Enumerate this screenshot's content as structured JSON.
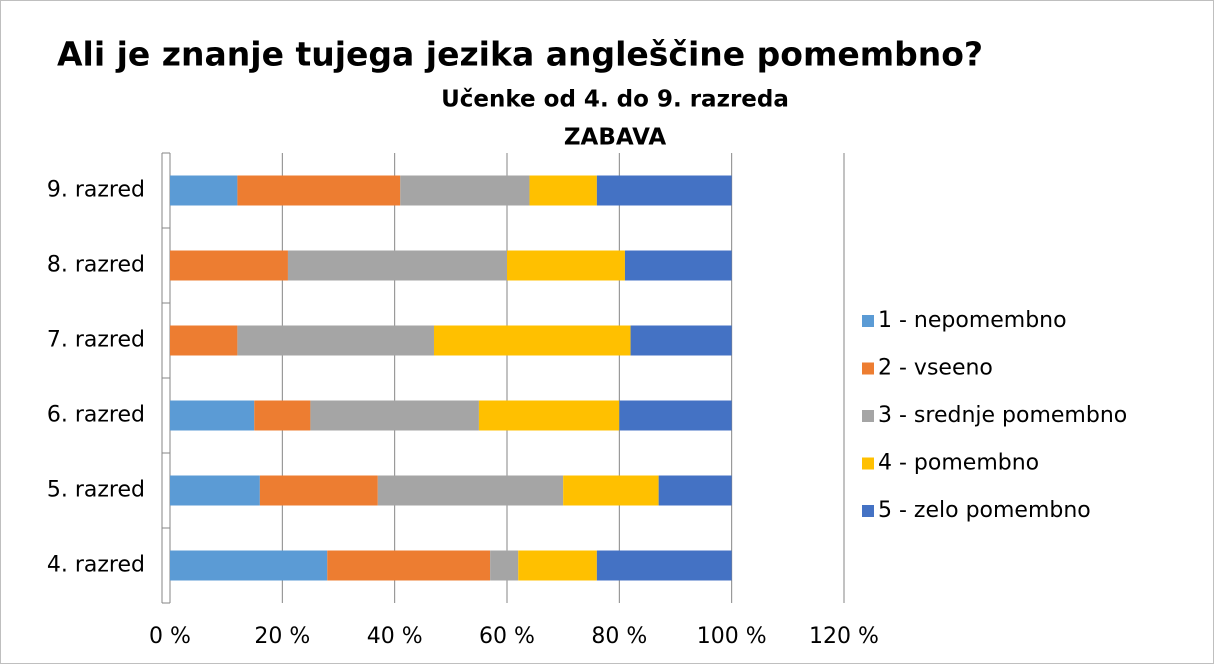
{
  "chart_data": {
    "type": "stacked_bar_horizontal",
    "title": "Ali je znanje tujega jezika angleščine pomembno?",
    "subtitle": "Učenke od 4. do 9. razreda",
    "annotation": "ZABAVA",
    "categories": [
      "9. razred",
      "8. razred",
      "7. razred",
      "6. razred",
      "5. razred",
      "4. razred"
    ],
    "series": [
      {
        "name": "1 - nepomembno",
        "color": "#5b9bd5",
        "values": [
          12,
          0,
          0,
          15,
          16,
          28
        ]
      },
      {
        "name": "2 - vseeno",
        "color": "#ed7d31",
        "values": [
          29,
          21,
          12,
          10,
          21,
          29
        ]
      },
      {
        "name": "3 - srednje pomembno",
        "color": "#a5a5a5",
        "values": [
          23,
          39,
          35,
          30,
          33,
          5
        ]
      },
      {
        "name": "4 - pomembno",
        "color": "#ffc000",
        "values": [
          12,
          21,
          35,
          25,
          17,
          14
        ]
      },
      {
        "name": "5 - zelo pomembno",
        "color": "#4472c4",
        "values": [
          24,
          19,
          18,
          20,
          13,
          24
        ]
      }
    ],
    "xlim": [
      0,
      120
    ],
    "xticks": [
      {
        "value": 0,
        "label": "0 %"
      },
      {
        "value": 20,
        "label": "20 %"
      },
      {
        "value": 40,
        "label": "40 %"
      },
      {
        "value": 60,
        "label": "60 %"
      },
      {
        "value": 80,
        "label": "80 %"
      },
      {
        "value": 100,
        "label": "100 %"
      },
      {
        "value": 120,
        "label": "120 %"
      }
    ],
    "grid": true,
    "legend": "right"
  }
}
